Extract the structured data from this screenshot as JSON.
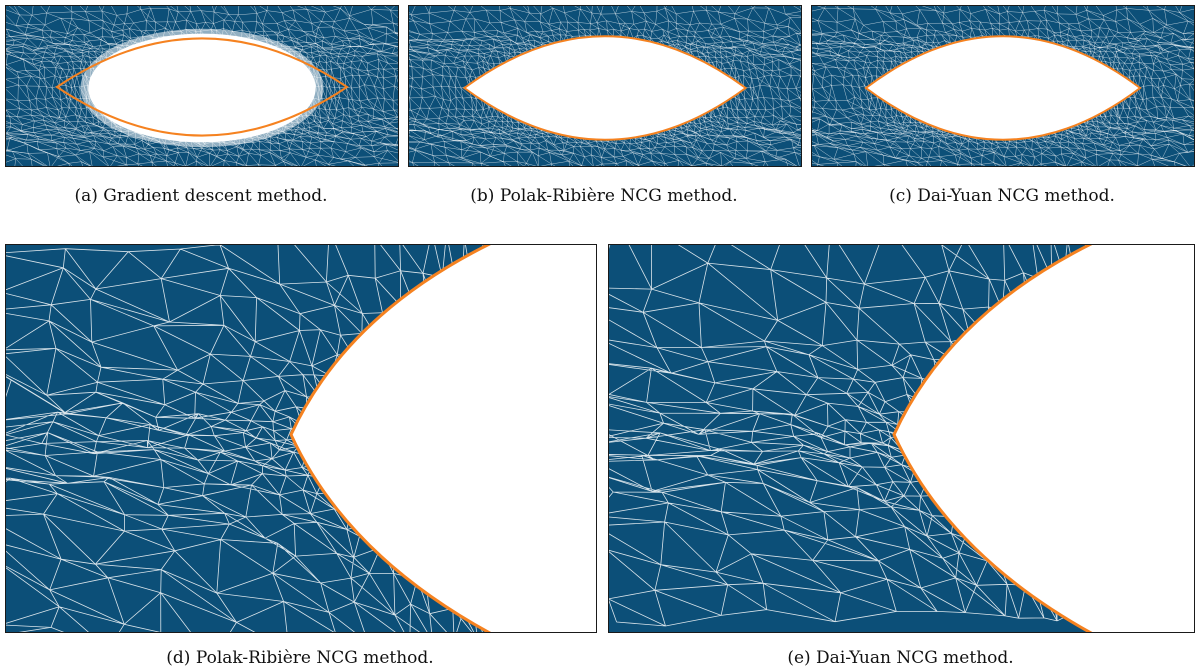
{
  "figure": {
    "panels": [
      {
        "id": "a",
        "caption": "(a) Gradient descent method."
      },
      {
        "id": "b",
        "caption": "(b) Polak-Ribière NCG method."
      },
      {
        "id": "c",
        "caption": "(c) Dai-Yuan NCG method."
      },
      {
        "id": "d",
        "caption": "(d) Polak-Ribière NCG method."
      },
      {
        "id": "e",
        "caption": "(e) Dai-Yuan NCG method."
      }
    ],
    "colors": {
      "mesh_fill": "#0c4f78",
      "mesh_lines": "#ffffff",
      "boundary": "#f58220",
      "hole": "#ffffff"
    }
  }
}
